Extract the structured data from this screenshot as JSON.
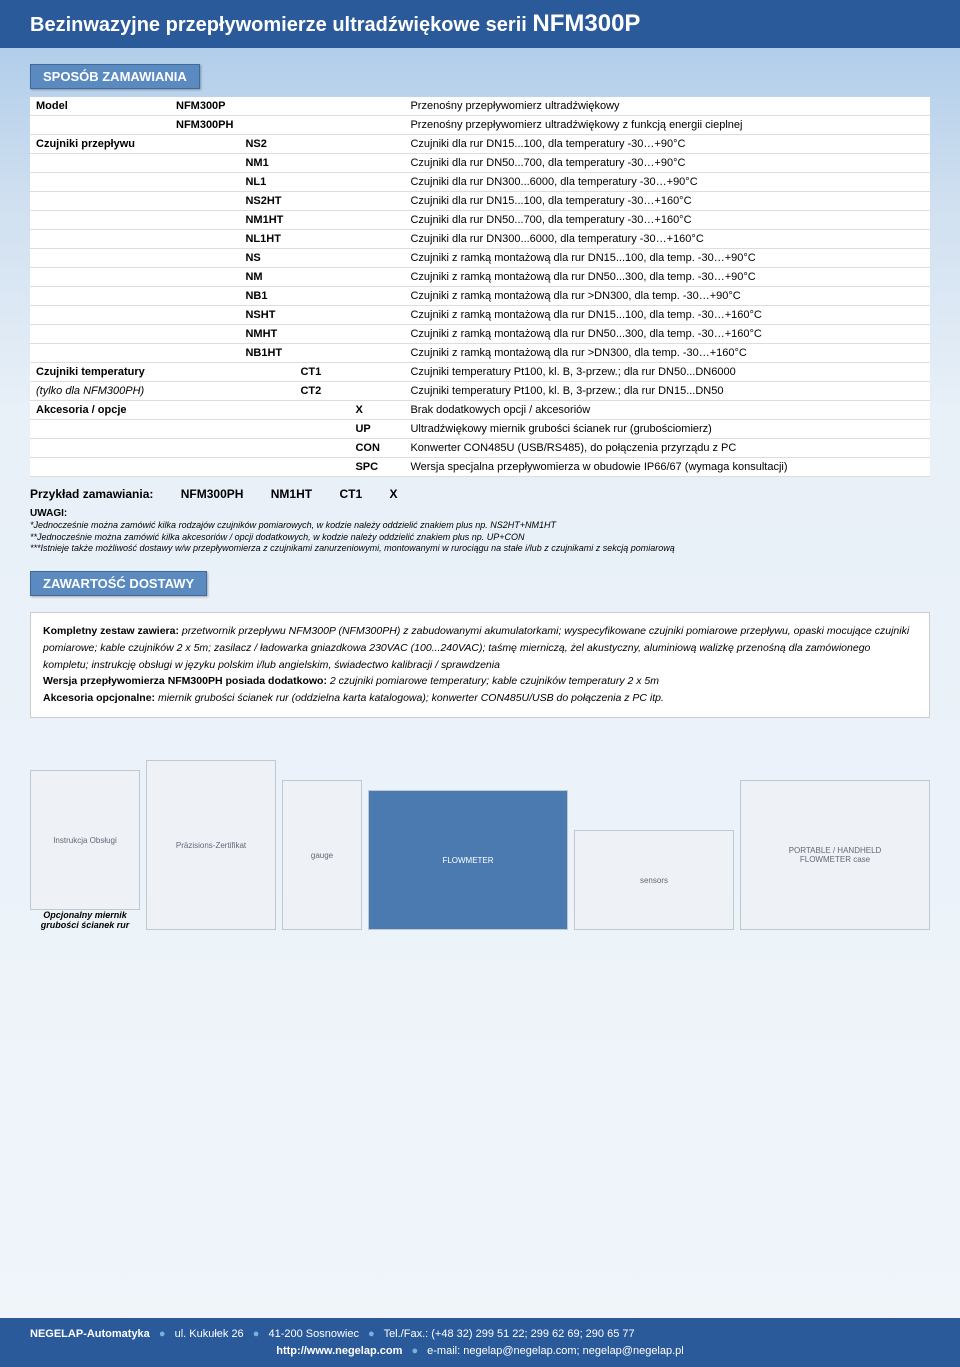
{
  "title": {
    "prefix": "Bezinwazyjne przepływomierze ultradźwiękowe serii ",
    "model": "NFM300P"
  },
  "sections": {
    "ordering": "SPOSÓB ZAMAWIANIA",
    "delivery": "ZAWARTOŚĆ DOSTAWY"
  },
  "order_rows": [
    {
      "label": "Model",
      "code": "NFM300P",
      "col": 0,
      "desc": "Przenośny przepływomierz ultradźwiękowy"
    },
    {
      "label": "",
      "code": "NFM300PH",
      "col": 0,
      "desc": "Przenośny przepływomierz ultradźwiękowy z funkcją energii cieplnej"
    },
    {
      "label": "Czujniki przepływu",
      "code": "NS2",
      "col": 1,
      "desc": "Czujniki dla rur DN15...100, dla temperatury -30…+90°C"
    },
    {
      "label": "",
      "code": "NM1",
      "col": 1,
      "desc": "Czujniki dla rur DN50...700, dla temperatury -30…+90°C"
    },
    {
      "label": "",
      "code": "NL1",
      "col": 1,
      "desc": "Czujniki dla rur DN300...6000, dla temperatury -30…+90°C"
    },
    {
      "label": "",
      "code": "NS2HT",
      "col": 1,
      "desc": "Czujniki dla rur DN15...100, dla temperatury -30…+160°C"
    },
    {
      "label": "",
      "code": "NM1HT",
      "col": 1,
      "desc": "Czujniki dla rur DN50...700, dla temperatury -30…+160°C"
    },
    {
      "label": "",
      "code": "NL1HT",
      "col": 1,
      "desc": "Czujniki dla rur DN300...6000, dla temperatury -30…+160°C"
    },
    {
      "label": "",
      "code": "NS",
      "col": 1,
      "desc": "Czujniki z ramką montażową dla rur DN15...100, dla temp. -30…+90°C"
    },
    {
      "label": "",
      "code": "NM",
      "col": 1,
      "desc": "Czujniki z ramką montażową dla rur DN50...300, dla temp. -30…+90°C"
    },
    {
      "label": "",
      "code": "NB1",
      "col": 1,
      "desc": "Czujniki z ramką montażową dla rur >DN300, dla temp. -30…+90°C"
    },
    {
      "label": "",
      "code": "NSHT",
      "col": 1,
      "desc": "Czujniki z ramką montażową dla rur DN15...100, dla temp. -30…+160°C"
    },
    {
      "label": "",
      "code": "NMHT",
      "col": 1,
      "desc": "Czujniki z ramką montażową dla rur DN50...300, dla temp. -30…+160°C"
    },
    {
      "label": "",
      "code": "NB1HT",
      "col": 1,
      "desc": "Czujniki z ramką montażową dla rur >DN300, dla temp. -30…+160°C"
    },
    {
      "label": "Czujniki temperatury",
      "code": "CT1",
      "col": 2,
      "desc": "Czujniki temperatury Pt100, kl. B, 3-przew.; dla rur DN50...DN6000"
    },
    {
      "label": "(tylko dla NFM300PH)",
      "code": "CT2",
      "col": 2,
      "label_italic": true,
      "desc": "Czujniki temperatury Pt100, kl. B, 3-przew.; dla rur DN15...DN50"
    },
    {
      "label": "Akcesoria / opcje",
      "code": "X",
      "col": 3,
      "desc": "Brak dodatkowych opcji / akcesoriów"
    },
    {
      "label": "",
      "code": "UP",
      "col": 3,
      "desc": "Ultradźwiękowy miernik grubości ścianek rur (grubościomierz)"
    },
    {
      "label": "",
      "code": "CON",
      "col": 3,
      "desc": "Konwerter CON485U (USB/RS485), do połączenia przyrządu z PC"
    },
    {
      "label": "",
      "code": "SPC",
      "col": 3,
      "desc": "Wersja specjalna przepływomierza w obudowie IP66/67 (wymaga konsultacji)"
    }
  ],
  "example": {
    "label": "Przykład zamawiania:",
    "parts": [
      "NFM300PH",
      "NM1HT",
      "CT1",
      "X"
    ]
  },
  "notes": {
    "title": "UWAGI:",
    "lines": [
      "*Jednocześnie można zamówić kilka rodzajów czujników pomiarowych, w kodzie należy oddzielić znakiem plus np. NS2HT+NM1HT",
      "**Jednocześnie można zamówić kilka akcesoriów / opcji dodatkowych, w kodzie należy oddzielić znakiem plus np. UP+CON",
      "***Istnieje także możliwość dostawy w/w przepływomierza z czujnikami zanurzeniowymi, montowanymi w rurociągu na stałe i/lub z czujnikami z sekcją pomiarową"
    ]
  },
  "delivery": {
    "p1_bold": "Kompletny zestaw zawiera:",
    "p1": " przetwornik przepływu NFM300P (NFM300PH) z zabudowanymi akumulatorkami; wyspecyfikowane czujniki pomiarowe przepływu, opaski mocujące czujniki pomiarowe; kable czujników 2 x 5m; zasilacz / ładowarka gniazdkowa 230VAC (100...240VAC); taśmę mierniczą, żel akustyczny, aluminiową walizkę przenośną dla zamówionego kompletu; instrukcję obsługi w języku polskim i/lub angielskim, świadectwo kalibracji / sprawdzenia",
    "p2_bold": "Wersja przepływomierza NFM300PH posiada dodatkowo:",
    "p2": " 2 czujniki pomiarowe temperatury; kable czujników temperatury 2 x 5m",
    "p3_bold": "Akcesoria opcjonalne:",
    "p3": " miernik grubości ścianek rur (oddzielna karta katalogowa); konwerter CON485U/USB do połączenia z PC itp."
  },
  "thickness_caption": "Opcjonalny miernik grubości ścianek rur",
  "footer": {
    "company": "NEGELAP-Automatyka",
    "addr1": "ul. Kukułek 26",
    "addr2": "41-200 Sosnowiec",
    "tel_label": "Tel./Fax.:",
    "tel": "(+48 32) 299 51 22; 299 62 69; 290 65 77",
    "web": "http://www.negelap.com",
    "email_label": "e-mail:",
    "emails": "negelap@negelap.com; negelap@negelap.pl"
  },
  "colors": {
    "header_bg": "#2a5a9a",
    "section_bg": "#5a8ac0"
  }
}
